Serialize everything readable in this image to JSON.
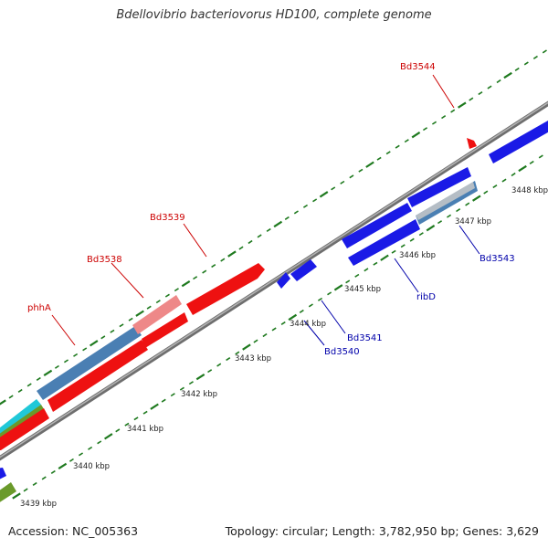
{
  "title": "Bdellovibrio bacteriovorus HD100, complete genome",
  "accession": "Accession: NC_005363",
  "topology": "Topology: circular; Length: 3,782,950 bp; Genes: 3,629",
  "colors": {
    "backbone": "#8a8a8a",
    "tick": "#1f7a1f",
    "forward_label": "#cc0000",
    "reverse_label": "#0000aa",
    "red_gene": "#ee1111",
    "blue_gene": "#1a1ae6",
    "steel": "#4a7fb3",
    "pink": "#ee8888",
    "olive": "#6a9a2a",
    "cyan": "#20c8d8"
  },
  "tick_labels": [
    "3439 kbp",
    "3440 kbp",
    "3441 kbp",
    "3442 kbp",
    "3443 kbp",
    "3444 kbp",
    "3445 kbp",
    "3446 kbp",
    "3447 kbp",
    "3448 kbp"
  ],
  "forward_labels": [
    "phhA",
    "Bd3538",
    "Bd3539",
    "Bd3544"
  ],
  "reverse_labels": [
    "ribD",
    "Bd3543",
    "Bd3541",
    "Bd3540"
  ]
}
